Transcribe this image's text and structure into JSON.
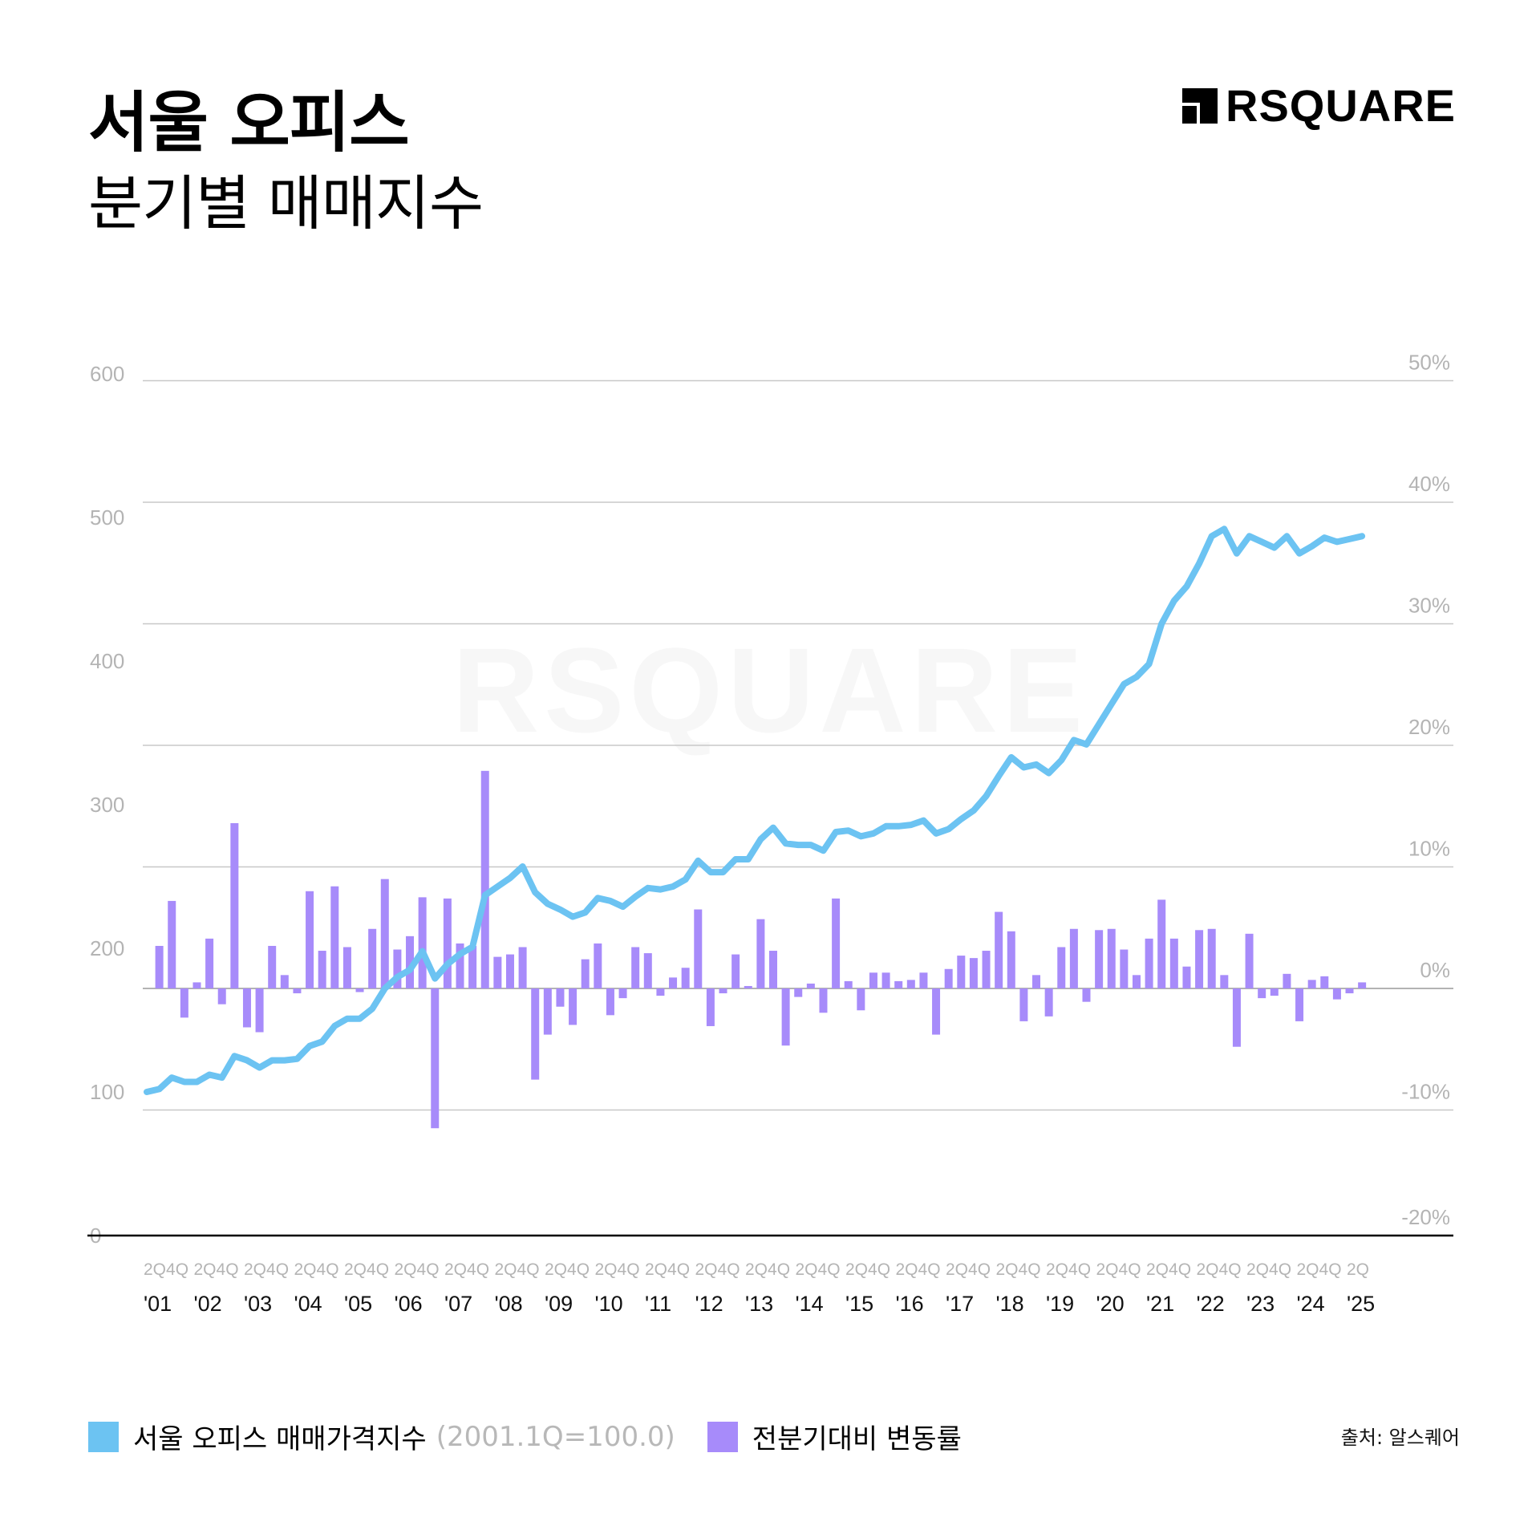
{
  "header": {
    "title_line1": "서울 오피스",
    "title_line2": "분기별 매매지수",
    "logo_text": "RSQUARE"
  },
  "watermark": "RSQUARE",
  "colors": {
    "line": "#6cc3f2",
    "bars": "#a78bfa",
    "grid": "#c8c8c8",
    "axis_label": "#b4b4b4",
    "baseline": "#000000",
    "watermark": "#f7f7f7"
  },
  "legend": {
    "items": [
      {
        "label": "서울 오피스 매매가격지수",
        "note": "(2001.1Q=100.0)",
        "color": "#6cc3f2"
      },
      {
        "label": "전분기대비 변동률",
        "note": "",
        "color": "#a78bfa"
      }
    ]
  },
  "source": "출처: 알스퀘어",
  "chart_data": {
    "type": "bar+line",
    "title": "서울 오피스 분기별 매매지수",
    "xlabel": "",
    "ylabel_left": "매매가격지수 (2001.1Q=100.0)",
    "ylabel_right": "전분기대비 변동률",
    "y_left_ticks": [
      0,
      100,
      200,
      300,
      400,
      500,
      600
    ],
    "y_right_ticks": [
      "-20%",
      "-10%",
      "0%",
      "10%",
      "20%",
      "30%",
      "40%",
      "50%"
    ],
    "y_left_range": [
      0,
      600
    ],
    "y_right_range": [
      -20,
      50
    ],
    "grid": true,
    "legend_position": "bottom",
    "x_quarter_tick_label": "2Q4Q",
    "x_last_quarter_tick_label": "2Q",
    "x_year_labels": [
      "'01",
      "'02",
      "'03",
      "'04",
      "'05",
      "'06",
      "'07",
      "'08",
      "'09",
      "'10",
      "'11",
      "'12",
      "'13",
      "'14",
      "'15",
      "'16",
      "'17",
      "'18",
      "'19",
      "'20",
      "'21",
      "'22",
      "'23",
      "'24",
      "'25"
    ],
    "start_quarter": "2001.1Q",
    "end_quarter": "2025.2Q",
    "series": [
      {
        "name": "서울 오피스 매매가격지수",
        "type": "line",
        "axis": "left",
        "values": [
          100,
          102,
          110,
          107,
          107,
          112,
          110,
          125,
          122,
          117,
          122,
          122,
          123,
          132,
          135,
          146,
          151,
          151,
          158,
          172,
          180,
          185,
          198,
          179,
          189,
          196,
          201,
          237,
          243,
          249,
          257,
          239,
          231,
          227,
          222,
          225,
          235,
          233,
          229,
          236,
          242,
          241,
          243,
          248,
          261,
          253,
          253,
          262,
          262,
          276,
          284,
          273,
          272,
          272,
          268,
          281,
          282,
          278,
          280,
          285,
          285,
          286,
          289,
          280,
          283,
          290,
          296,
          306,
          320,
          333,
          326,
          328,
          322,
          331,
          345,
          342,
          356,
          370,
          384,
          389,
          398,
          426,
          442,
          452,
          468,
          487,
          492,
          475,
          487,
          483,
          479,
          487,
          475,
          480,
          486,
          483,
          485,
          487
        ]
      },
      {
        "name": "전분기대비 변동률",
        "type": "bar",
        "axis": "right",
        "unit": "%",
        "values": [
          null,
          3.5,
          7.2,
          -2.4,
          0.5,
          4.1,
          -1.3,
          13.6,
          -3.2,
          -3.6,
          3.5,
          1.1,
          -0.4,
          8.0,
          3.1,
          8.4,
          3.4,
          -0.3,
          4.9,
          9.0,
          3.2,
          4.3,
          7.5,
          -11.5,
          7.4,
          3.7,
          3.5,
          17.9,
          2.6,
          2.8,
          3.4,
          -7.5,
          -3.8,
          -1.5,
          -3.0,
          2.4,
          3.7,
          -2.2,
          -0.8,
          3.4,
          2.9,
          -0.6,
          0.9,
          1.7,
          6.5,
          -3.1,
          -0.4,
          2.8,
          0.2,
          5.7,
          3.1,
          -4.7,
          -0.7,
          0.4,
          -2.0,
          7.4,
          0.6,
          -1.8,
          1.3,
          1.3,
          0.6,
          0.7,
          1.3,
          -3.8,
          1.6,
          2.7,
          2.5,
          3.1,
          6.3,
          4.7,
          -2.7,
          1.1,
          -2.3,
          3.4,
          4.9,
          -1.1,
          4.8,
          4.9,
          3.2,
          1.1,
          4.1,
          7.3,
          4.1,
          1.8,
          4.8,
          4.9,
          1.1,
          -4.8,
          4.5,
          -0.8,
          -0.6,
          1.2,
          -2.7,
          0.7,
          1.0,
          -0.9,
          -0.4,
          0.5
        ]
      }
    ]
  }
}
